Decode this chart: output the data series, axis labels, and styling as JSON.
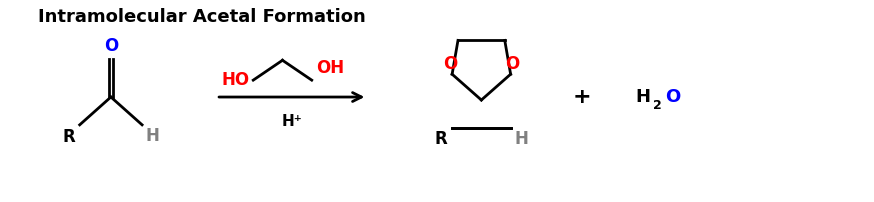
{
  "title": "Intramolecular Acetal Formation",
  "title_fontsize": 13,
  "bg_color": "#ffffff",
  "black": "#000000",
  "red": "#ff0000",
  "blue": "#0000ff",
  "gray": "#808080",
  "figsize": [
    8.74,
    2.02
  ],
  "dpi": 100,
  "xlim": [
    0,
    8.74
  ],
  "ylim": [
    0,
    2.02
  ]
}
